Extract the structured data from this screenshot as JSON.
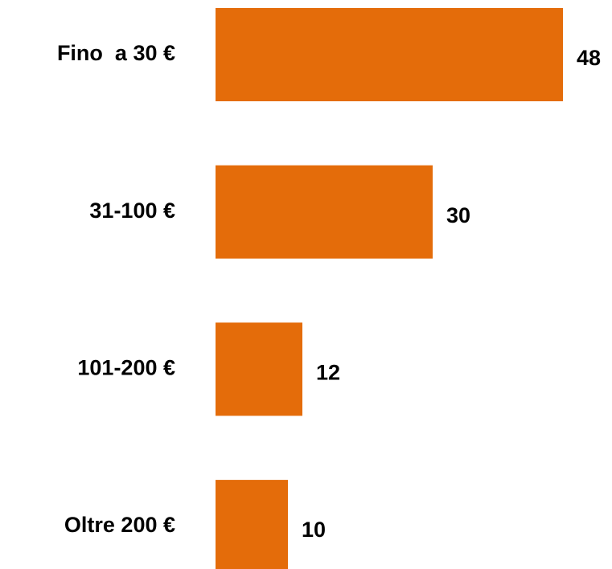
{
  "chart_data": {
    "type": "bar",
    "orientation": "horizontal",
    "categories": [
      "Fino  a 30 €",
      "31-100 €",
      "101-200 €",
      "Oltre 200 €"
    ],
    "values": [
      48,
      30,
      12,
      10
    ],
    "color": "#e46c0a"
  }
}
